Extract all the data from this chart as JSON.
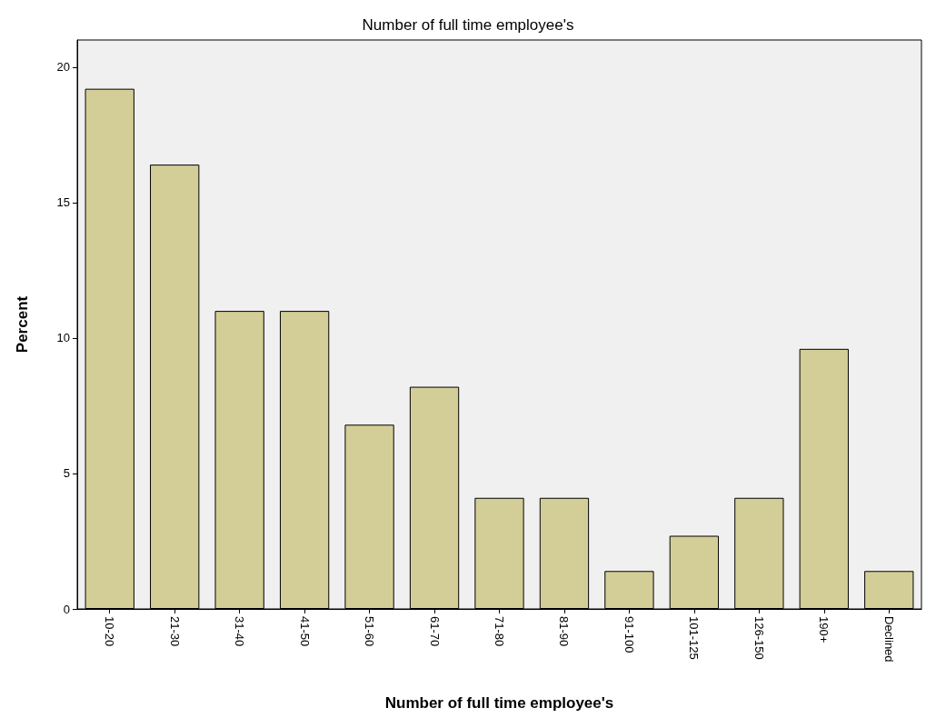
{
  "chart_data": {
    "type": "bar",
    "title": "Number of full time employee's",
    "xlabel": "Number of full time employee's",
    "ylabel": "Percent",
    "categories": [
      "10-20",
      "21-30",
      "31-40",
      "41-50",
      "51-60",
      "61-70",
      "71-80",
      "81-90",
      "91-100",
      "101-125",
      "126-150",
      "190+",
      "Declined"
    ],
    "values": [
      19.2,
      16.4,
      11.0,
      11.0,
      6.8,
      8.2,
      4.1,
      4.1,
      1.4,
      2.7,
      4.1,
      9.6,
      1.4
    ],
    "color": "#d3ce97",
    "ylim": [
      0,
      21
    ],
    "yticks": [
      0,
      5,
      10,
      15,
      20
    ],
    "grid": false
  }
}
